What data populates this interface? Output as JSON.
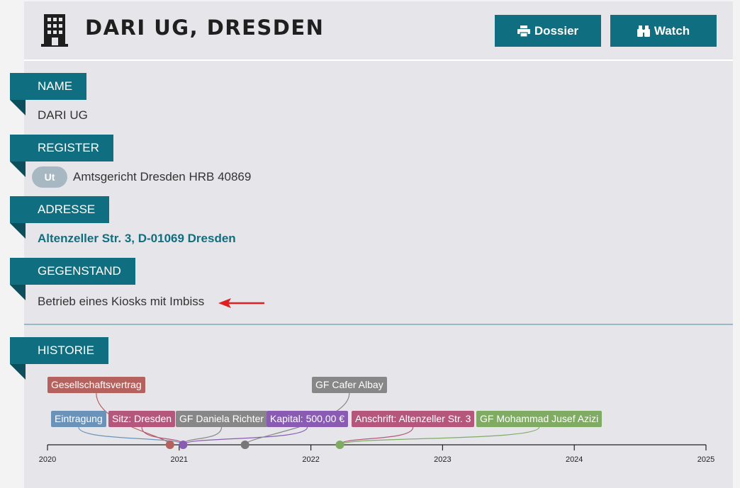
{
  "header": {
    "title": "DARI UG, DRESDEN",
    "dossier_label": "Dossier",
    "watch_label": "Watch"
  },
  "sections": {
    "name": {
      "label": "NAME",
      "value": "DARI UG"
    },
    "register": {
      "label": "REGISTER",
      "badge": "Ut",
      "value": "Amtsgericht Dresden HRB 40869"
    },
    "adresse": {
      "label": "ADRESSE",
      "value": "Altenzeller Str. 3, D-01069 Dresden"
    },
    "gegenstand": {
      "label": "GEGENSTAND",
      "value": "Betrieb eines Kiosks mit Imbiss"
    },
    "historie": {
      "label": "HISTORIE"
    }
  },
  "timeline": {
    "years": [
      "2020",
      "2021",
      "2022",
      "2023",
      "2024",
      "2025"
    ],
    "events": [
      {
        "label": "Gesellschaftsvertrag",
        "color": "#b5615d",
        "date": 2020.93
      },
      {
        "label": "Eintragung",
        "color": "#6b93b9",
        "date": 2021.03
      },
      {
        "label": "Sitz: Dresden",
        "color": "#b5577c",
        "date": 2021.03
      },
      {
        "label": "GF Daniela Richter",
        "color": "#878787",
        "date": 2021.03
      },
      {
        "label": "Kapital: 500,00 €",
        "color": "#8a5bb3",
        "date": 2021.03
      },
      {
        "label": "GF Cafer Albay",
        "color": "#878787",
        "date": 2021.5
      },
      {
        "label": "Anschrift: Altenzeller Str. 3",
        "color": "#b5577c",
        "date": 2022.22
      },
      {
        "label": "GF Mohammad Jusef Azizi",
        "color": "#7fab63",
        "date": 2022.22
      }
    ],
    "dots": [
      {
        "color": "#b5615d",
        "date": 2020.93
      },
      {
        "color": "#8a5bb3",
        "date": 2021.03
      },
      {
        "color": "#777777",
        "date": 2021.5
      },
      {
        "color": "#7fab63",
        "date": 2022.22
      }
    ]
  },
  "colors": {
    "accent": "#0f6f80",
    "annotation_arrow": "#e02020"
  }
}
